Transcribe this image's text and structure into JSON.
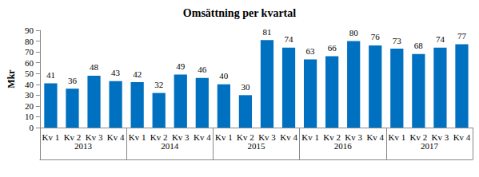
{
  "chart_data": {
    "type": "bar",
    "title": "Omsättning per kvartal",
    "y_label": "Mkr",
    "categories": [
      "Kv 1",
      "Kv 2",
      "Kv 3",
      "Kv 4",
      "Kv 1",
      "Kv 2",
      "Kv 3",
      "Kv 4",
      "Kv 1",
      "Kv 2",
      "Kv 3",
      "Kv 4",
      "Kv 1",
      "Kv 2",
      "Kv 3",
      "Kv 4",
      "Kv 1",
      "Kv 2",
      "Kv 3",
      "Kv 4"
    ],
    "groups": [
      "2013",
      "2014",
      "2015",
      "2016",
      "2017"
    ],
    "values": [
      41,
      36,
      48,
      43,
      42,
      32,
      49,
      46,
      40,
      30,
      81,
      74,
      63,
      66,
      80,
      76,
      73,
      68,
      74,
      77
    ],
    "color": "#0070c0",
    "ylim": [
      0,
      90
    ],
    "yticks": [
      0,
      10,
      20,
      30,
      40,
      50,
      60,
      70,
      80,
      90
    ],
    "grid": false,
    "data_labels": true
  }
}
